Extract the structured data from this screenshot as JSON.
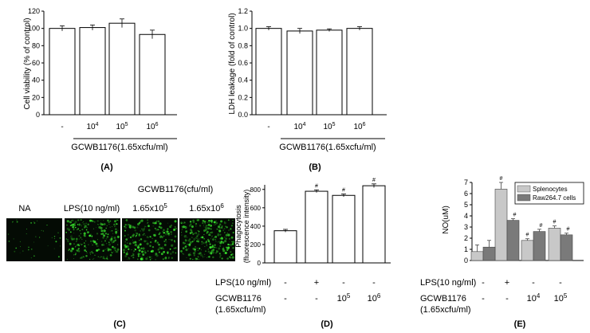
{
  "panels": {
    "A": {
      "letter": "(A)",
      "group_label": "GCWB1176(1.65xcfu/ml)",
      "chart_data": {
        "type": "bar",
        "ylabel": "Cell viability (% of control)",
        "ylim": [
          0,
          120
        ],
        "yticks": [
          0,
          20,
          40,
          60,
          80,
          100,
          120
        ],
        "categories": [
          "-",
          "10",
          "10",
          "10"
        ],
        "category_superscripts": [
          "",
          "4",
          "5",
          "6"
        ],
        "values": [
          100,
          101,
          106,
          93
        ],
        "errors": [
          3,
          3,
          5,
          5
        ]
      }
    },
    "B": {
      "letter": "(B)",
      "group_label": "GCWB1176(1.65xcfu/ml)",
      "chart_data": {
        "type": "bar",
        "ylabel": "LDH leakage (fold of control)",
        "ylim": [
          0,
          1.2
        ],
        "yticks": [
          "0.0",
          "0.2",
          "0.4",
          "0.6",
          "0.8",
          "1.0",
          "1.2"
        ],
        "categories": [
          "-",
          "10",
          "10",
          "10"
        ],
        "category_superscripts": [
          "",
          "4",
          "5",
          "6"
        ],
        "values": [
          1.0,
          0.97,
          0.98,
          1.0
        ],
        "errors": [
          0.02,
          0.03,
          0.015,
          0.02
        ]
      }
    },
    "C": {
      "letter": "(C)",
      "header": "GCWB1176(cfu/ml)",
      "labels": [
        "NA",
        "LPS(10 ng/ml)",
        "1.65x10",
        "1.65x10"
      ],
      "label_superscripts": [
        "",
        "",
        "5",
        "6"
      ]
    },
    "D": {
      "letter": "(D)",
      "chart_data": {
        "type": "bar",
        "ylabel": "Phagocytosis (fluorescence intensity)",
        "ylabel_lines": [
          "Phagocytosis",
          "(fluorescence intensity)"
        ],
        "ylim": [
          0,
          850
        ],
        "yticks": [
          0,
          200,
          400,
          600,
          800
        ],
        "values": [
          350,
          780,
          735,
          840
        ],
        "errors": [
          15,
          15,
          15,
          20
        ],
        "significance": [
          "",
          "#",
          "#",
          "#"
        ]
      },
      "row1": {
        "label": "LPS(10 ng/ml)",
        "values": [
          "-",
          "+",
          "-",
          "-"
        ]
      },
      "row2": {
        "label_lines": [
          "GCWB1176",
          "(1.65xcfu/ml)"
        ],
        "values": [
          "-",
          "-",
          "10",
          "10"
        ],
        "superscripts": [
          "",
          "",
          "5",
          "6"
        ]
      }
    },
    "E": {
      "letter": "(E)",
      "chart_data": {
        "type": "bar",
        "ylabel": "NO(uM)",
        "ylim": [
          0,
          7
        ],
        "yticks": [
          0,
          1,
          2,
          3,
          4,
          5,
          6,
          7
        ],
        "series": [
          {
            "name": "Splenocytes",
            "values": [
              0.8,
              6.4,
              1.8,
              2.9
            ],
            "errors": [
              0.6,
              0.6,
              0.15,
              0.2
            ],
            "significance": [
              "",
              "#",
              "#",
              "#"
            ],
            "color": "#c8c8c8"
          },
          {
            "name": "Raw264.7 cells",
            "values": [
              1.2,
              3.6,
              2.6,
              2.3
            ],
            "errors": [
              0.6,
              0.15,
              0.2,
              0.15
            ],
            "significance": [
              "",
              "#",
              "#",
              "#"
            ],
            "color": "#7a7a7a"
          }
        ],
        "legend_position": "top-right"
      },
      "row1": {
        "label": "LPS(10 ng/ml)",
        "values": [
          "-",
          "+",
          "-",
          "-"
        ]
      },
      "row2": {
        "label_lines": [
          "GCWB1176",
          "(1.65xcfu/ml)"
        ],
        "values": [
          "-",
          "-",
          "10",
          "10"
        ],
        "superscripts": [
          "",
          "",
          "4",
          "5"
        ]
      }
    }
  }
}
